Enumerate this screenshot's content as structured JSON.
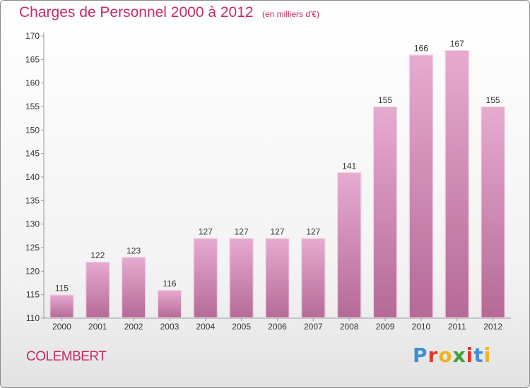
{
  "chart_title": "Charges de Personnel 2000 à 2012",
  "chart_subtitle": "(en milliers d'€)",
  "city": "COLEMBERT",
  "logo_text": "Proxiti",
  "logo_colors": [
    "#3f8fd6",
    "#e0372c",
    "#f0b21e",
    "#3aa03a",
    "#e0372c",
    "#3f8fd6",
    "#f0b21e"
  ],
  "colors": {
    "accent": "#c62a6a",
    "bar_top": "#e7abd0",
    "bar_bottom": "#b46a95"
  },
  "chart_data": {
    "type": "bar",
    "title": "Charges de Personnel 2000 à 2012",
    "subtitle": "(en milliers d'€)",
    "categories": [
      "2000",
      "2001",
      "2002",
      "2003",
      "2004",
      "2005",
      "2006",
      "2007",
      "2008",
      "2009",
      "2010",
      "2011",
      "2012"
    ],
    "values": [
      115,
      122,
      123,
      116,
      127,
      127,
      127,
      127,
      141,
      155,
      166,
      167,
      155
    ],
    "ylim": [
      110,
      170
    ],
    "yticks": [
      110,
      115,
      120,
      125,
      130,
      135,
      140,
      145,
      150,
      155,
      160,
      165,
      170
    ],
    "xlabel": "",
    "ylabel": "",
    "grid": false,
    "legend": "none"
  }
}
